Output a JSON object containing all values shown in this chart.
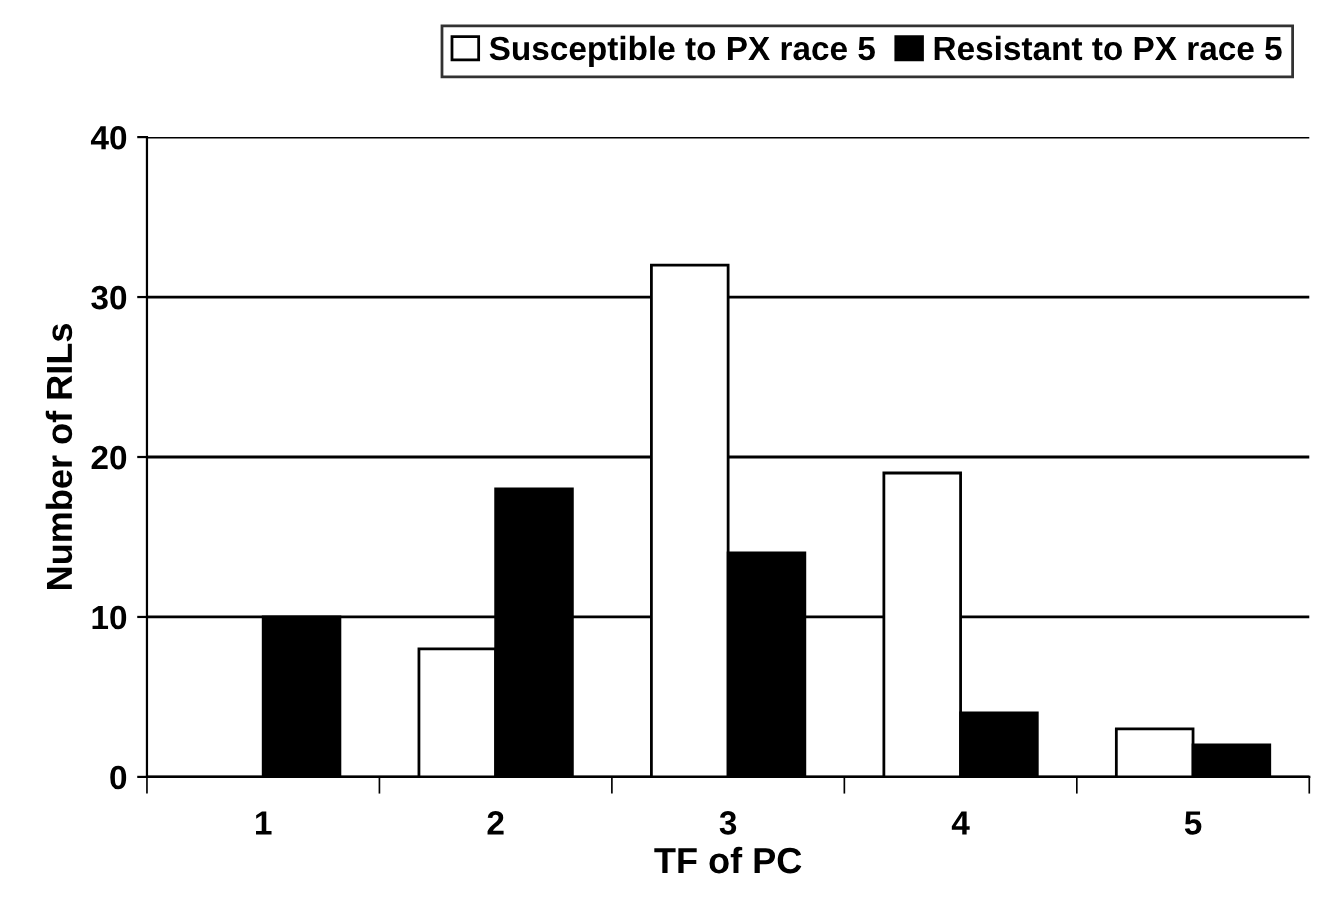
{
  "chart_data": {
    "type": "bar",
    "xlabel": "TF of PC",
    "ylabel": "Number of RILs",
    "categories": [
      "1",
      "2",
      "3",
      "4",
      "5"
    ],
    "series": [
      {
        "name": "Susceptible to PX race 5",
        "color": "#ffffff",
        "values": [
          0,
          8,
          32,
          19,
          3
        ]
      },
      {
        "name": "Resistant to PX race 5",
        "color": "#000000",
        "values": [
          10,
          18,
          14,
          4,
          2
        ]
      }
    ],
    "ylim": [
      0,
      40
    ],
    "yticks": [
      0,
      10,
      20,
      30,
      40
    ],
    "grid": "y",
    "legend": "top"
  }
}
